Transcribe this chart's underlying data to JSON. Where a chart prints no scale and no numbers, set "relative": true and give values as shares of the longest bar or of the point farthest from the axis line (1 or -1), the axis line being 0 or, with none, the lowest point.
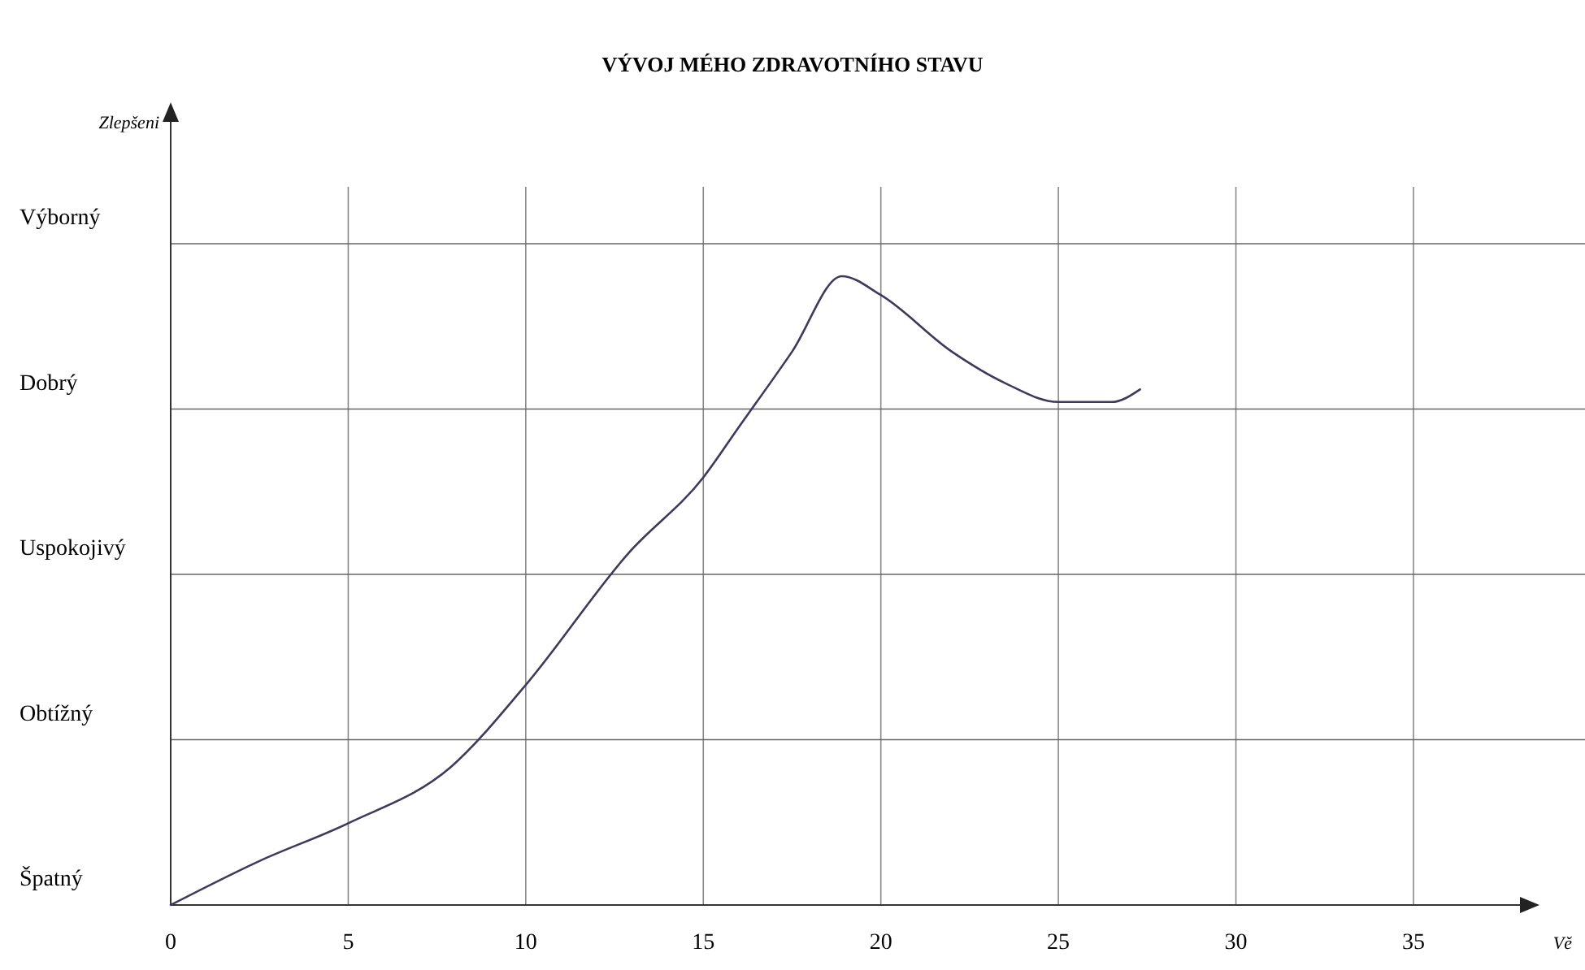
{
  "chart_data": {
    "type": "line",
    "title": "VÝVOJ MÉHO ZDRAVOTNÍHO STAVU",
    "xlabel": "Vě",
    "relative": true,
    "x": [
      0,
      2.5,
      5,
      7.9,
      10,
      12.9,
      15,
      16,
      17.5,
      18.9,
      20,
      22,
      23.5,
      25,
      26.5,
      27.3
    ],
    "series": [
      {
        "color": "#3d3a5c",
        "values": [
          0,
          0.07,
          0.13,
          0.22,
          0.35,
          0.56,
          0.68,
          0.76,
          0.88,
          1,
          0.97,
          0.88,
          0.83,
          0.8,
          0.8,
          0.82
        ]
      }
    ],
    "xlim": [
      0,
      38
    ],
    "xticks": [
      0,
      5,
      10,
      15,
      20,
      25,
      30,
      35
    ],
    "annotations": [
      "Zlepšeni",
      "Špatný",
      "Obtížný",
      "Uspokojivý",
      "Dobrý",
      "Výborný"
    ],
    "grid": true,
    "marker": "none",
    "line_style": "solid"
  }
}
